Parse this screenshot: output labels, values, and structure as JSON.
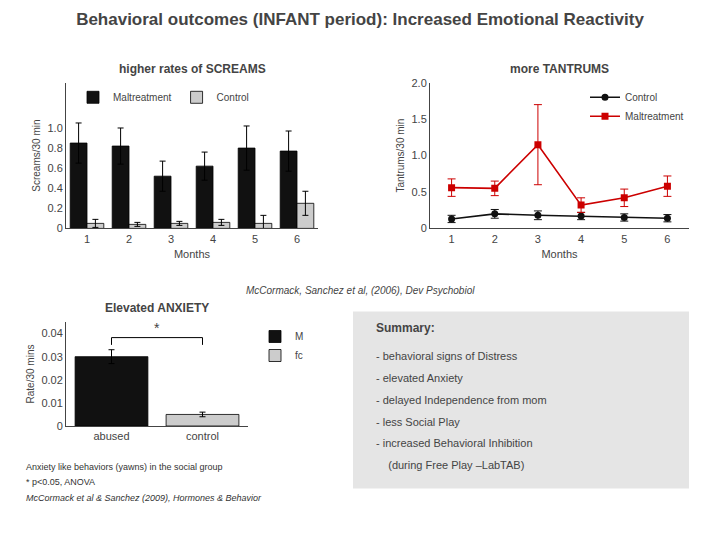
{
  "title": "Behavioral outcomes (INFANT period): Increased Emotional Reactivity",
  "chart_data": [
    {
      "type": "bar",
      "title": "higher rates of SCREAMS",
      "xlabel": "Months",
      "ylabel": "Screams/30 min",
      "categories": [
        "1",
        "2",
        "3",
        "4",
        "5",
        "6"
      ],
      "series": [
        {
          "name": "Maltreatment",
          "color": "#111111",
          "values": [
            0.85,
            0.82,
            0.52,
            0.62,
            0.8,
            0.77
          ],
          "errors": [
            0.2,
            0.18,
            0.15,
            0.14,
            0.22,
            0.2
          ]
        },
        {
          "name": "Control",
          "color": "#cccccc",
          "values": [
            0.05,
            0.04,
            0.05,
            0.06,
            0.05,
            0.25
          ],
          "errors": [
            0.04,
            0.02,
            0.02,
            0.03,
            0.08,
            0.12
          ]
        }
      ],
      "ylim": [
        0,
        1.45
      ],
      "yticks": [
        0,
        0.2,
        0.4,
        0.6,
        0.8,
        {
          "value": 1.0,
          "label": "1.0"
        }
      ],
      "grid": false,
      "legend": "upper left"
    },
    {
      "type": "line",
      "title": "more TANTRUMS",
      "xlabel": "Months",
      "ylabel": "Tantrums/30 min",
      "x": [
        1,
        2,
        3,
        4,
        5,
        6
      ],
      "xlim": [
        0.5,
        6.5
      ],
      "xticks": [
        1,
        2,
        3,
        4,
        5,
        6
      ],
      "series": [
        {
          "name": "Control",
          "color": "#111111",
          "marker": "circle",
          "line_style": "solid",
          "values": [
            0.13,
            0.2,
            0.18,
            0.17,
            0.15,
            0.14
          ],
          "errors": [
            0.05,
            0.06,
            0.06,
            0.05,
            0.05,
            0.05
          ]
        },
        {
          "name": "Maltreatment",
          "color": "#cc0000",
          "marker": "square",
          "line_style": "solid",
          "values": [
            0.56,
            0.55,
            1.15,
            0.32,
            0.42,
            0.58
          ],
          "errors": [
            0.12,
            0.1,
            0.55,
            0.1,
            0.12,
            0.14
          ]
        }
      ],
      "ylim": [
        0,
        2.0
      ],
      "yticks": [
        0,
        0.5,
        {
          "value": 1.0,
          "label": "1.0"
        },
        1.5,
        {
          "value": 2.0,
          "label": "2.0"
        }
      ],
      "grid": false,
      "legend": "upper right"
    },
    {
      "type": "bar",
      "title": "Elevated ANXIETY",
      "ylabel": "Rate/30 mins",
      "categories": [
        "abused",
        "control"
      ],
      "series": [
        {
          "name": "M",
          "color": "#111111",
          "values": [
            0.03,
            null
          ],
          "errors": [
            0.003,
            null
          ]
        },
        {
          "name": "fc",
          "color": "#cccccc",
          "values": [
            null,
            0.005
          ],
          "errors": [
            null,
            0.001
          ]
        }
      ],
      "ylim": [
        0,
        0.045
      ],
      "yticks": [
        0,
        0.01,
        0.02,
        0.03,
        0.04
      ],
      "grid": false,
      "legend": "upper right",
      "annotations": [
        "*"
      ]
    }
  ],
  "annotations": [
    "McCormack, Sanchez et al, (2006), Dev Psychobiol",
    "Anxiety like behaviors (yawns) in the social group",
    "* p<0.05, ANOVA",
    "McCormack et al & Sanchez (2009), Hormones & Behavior"
  ],
  "summary": {
    "title": "Summary:",
    "lines": [
      "- behavioral signs of Distress",
      "- elevated Anxiety",
      "- delayed Independence from mom",
      "- less Social Play",
      "- increased Behavioral Inhibition",
      "    (during Free Play –LabTAB)"
    ]
  }
}
